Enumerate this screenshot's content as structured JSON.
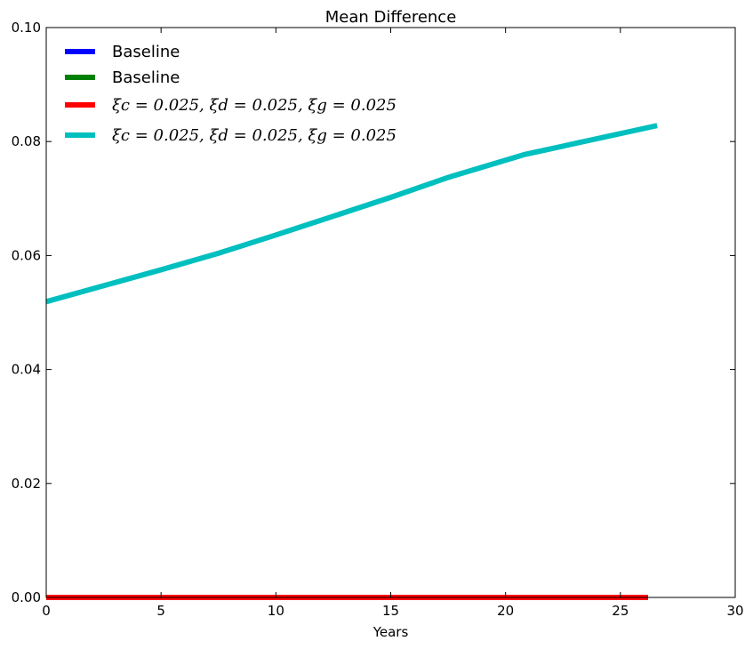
{
  "chart_data": {
    "type": "line",
    "title": "Mean Difference",
    "xlabel": "Years",
    "ylabel": "",
    "xlim": [
      0,
      30
    ],
    "ylim": [
      0,
      0.1
    ],
    "xticks": [
      0,
      5,
      10,
      15,
      20,
      25,
      30
    ],
    "xtick_labels": [
      "0",
      "5",
      "10",
      "15",
      "20",
      "25",
      "30"
    ],
    "yticks": [
      0,
      0.02,
      0.04,
      0.06,
      0.08,
      0.1
    ],
    "ytick_labels": [
      "0.00",
      "0.02",
      "0.04",
      "0.06",
      "0.08",
      "0.10"
    ],
    "grid": false,
    "legend_position": "top-left",
    "series": [
      {
        "name": "Baseline",
        "color": "#0000ff",
        "x": [
          0,
          26.2
        ],
        "y": [
          0,
          0
        ]
      },
      {
        "name": "Baseline",
        "color": "#008000",
        "x": [
          0,
          26.2
        ],
        "y": [
          0,
          0
        ]
      },
      {
        "name": "ξc = 0.025, ξd = 0.025, ξg = 0.025",
        "color": "#ff0000",
        "x": [
          0,
          26.2
        ],
        "y": [
          0,
          0
        ]
      },
      {
        "name": "ξc = 0.025, ξd = 0.025, ξg = 0.025",
        "color": "#00bfbf",
        "x": [
          0,
          2.5,
          5,
          7.5,
          10,
          12.5,
          15,
          17.5,
          20.8,
          26.6
        ],
        "y": [
          0.0519,
          0.0547,
          0.0575,
          0.0604,
          0.0636,
          0.0669,
          0.0702,
          0.0737,
          0.0777,
          0.0828
        ]
      }
    ]
  }
}
